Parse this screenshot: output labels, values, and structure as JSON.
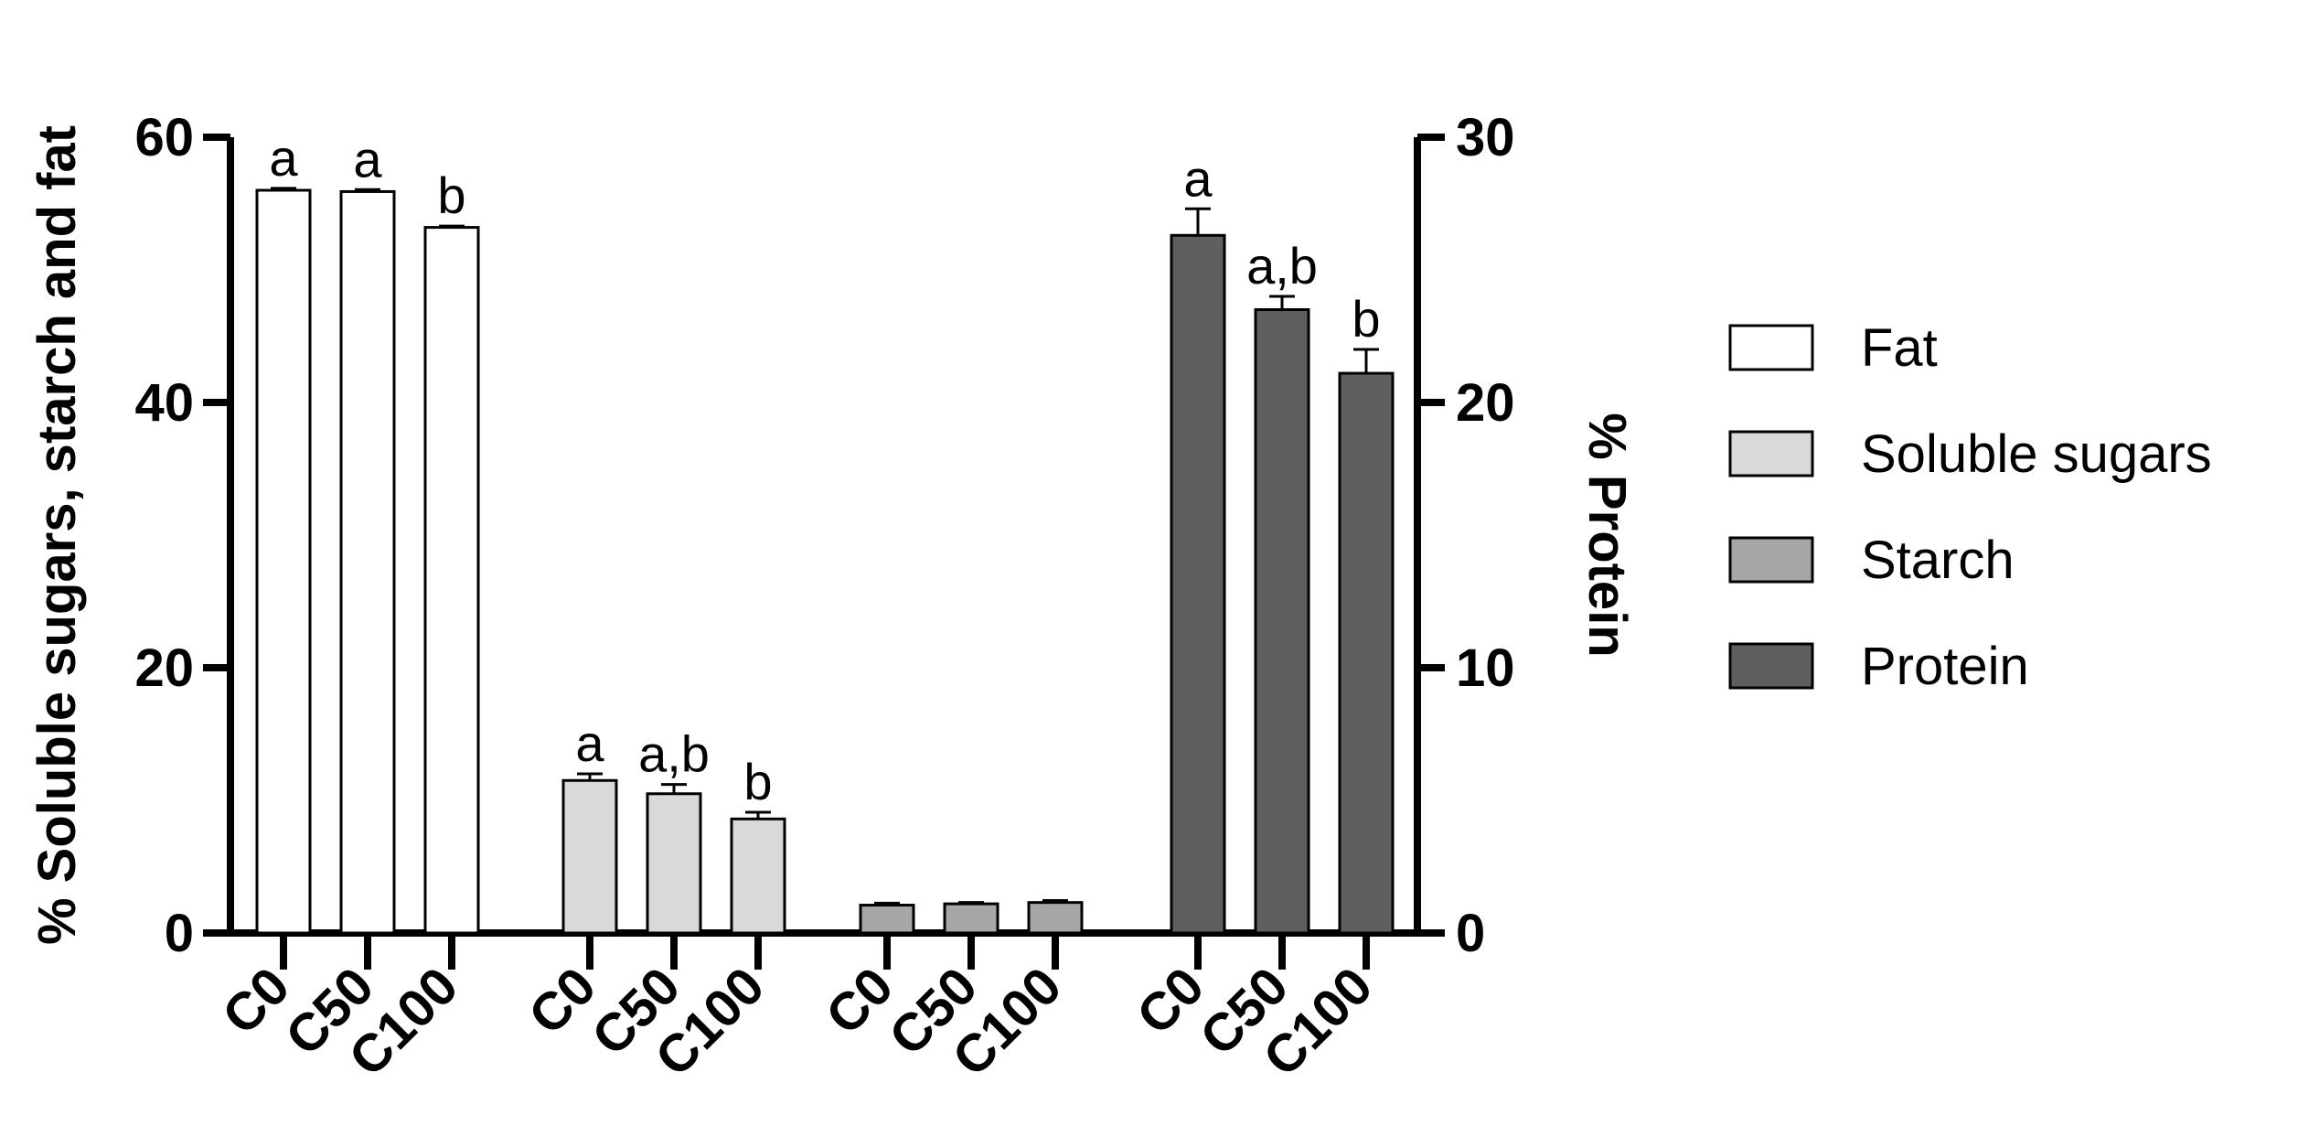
{
  "chart_data": {
    "type": "bar",
    "y_left": {
      "label": "% Soluble sugars, starch and fat",
      "lim": [
        0,
        60
      ],
      "ticks": [
        "0",
        "20",
        "40",
        "60"
      ]
    },
    "y_right": {
      "label": "% Protein",
      "lim": [
        0,
        30
      ],
      "ticks": [
        "0",
        "10",
        "20",
        "30"
      ]
    },
    "categories": [
      "C0",
      "C50",
      "C100"
    ],
    "groups": [
      {
        "name": "Fat",
        "axis": "left",
        "color": "#ffffff",
        "values": [
          56.0,
          55.9,
          53.2
        ],
        "errors": [
          0.15,
          0.15,
          0.1
        ],
        "significance": [
          "a",
          "a",
          "b"
        ]
      },
      {
        "name": "Soluble sugars",
        "axis": "left",
        "color": "#d9d9d9",
        "values": [
          11.5,
          10.5,
          8.6
        ],
        "errors": [
          0.5,
          0.7,
          0.5
        ],
        "significance": [
          "a",
          "a,b",
          "b"
        ]
      },
      {
        "name": "Starch",
        "axis": "left",
        "color": "#a6a6a6",
        "values": [
          2.1,
          2.2,
          2.3
        ],
        "errors": [
          0.15,
          0.1,
          0.15
        ],
        "significance": [
          "",
          "",
          ""
        ]
      },
      {
        "name": "Protein",
        "axis": "right",
        "color": "#5f5f5f",
        "values": [
          26.3,
          23.5,
          21.1
        ],
        "errors": [
          1.0,
          0.5,
          0.9
        ],
        "significance": [
          "a",
          "a,b",
          "b"
        ]
      }
    ],
    "legend": {
      "position": "right",
      "entries": [
        "Fat",
        "Soluble sugars",
        "Starch",
        "Protein"
      ]
    },
    "grid": false
  }
}
